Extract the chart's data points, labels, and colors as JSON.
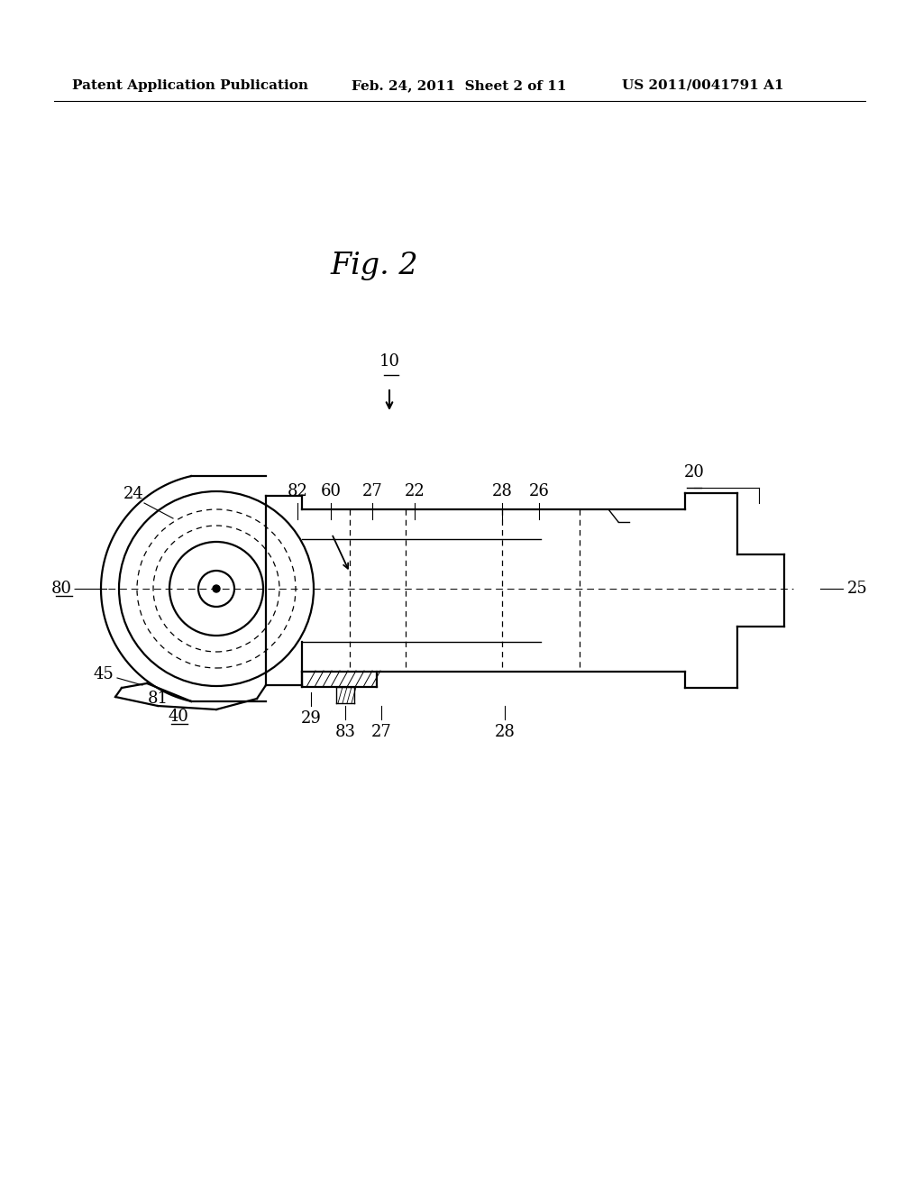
{
  "bg_color": "#ffffff",
  "header_left": "Patent Application Publication",
  "header_mid": "Feb. 24, 2011  Sheet 2 of 11",
  "header_right": "US 2011/0041791 A1",
  "fig_label": "Fig. 2",
  "lw_main": 1.6,
  "lw_thin": 1.0,
  "font_size_header": 11,
  "font_size_fig": 24,
  "font_size_label": 13
}
